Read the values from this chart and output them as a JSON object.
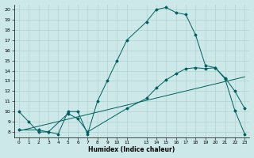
{
  "xlabel": "Humidex (Indice chaleur)",
  "bg_color": "#cce8e8",
  "grid_color": "#aacccc",
  "line_color": "#006060",
  "xlim": [
    -0.5,
    23.5
  ],
  "ylim": [
    7.5,
    20.5
  ],
  "xtick_positions": [
    0,
    1,
    2,
    3,
    4,
    5,
    6,
    7,
    8,
    9,
    10,
    11,
    13,
    14,
    15,
    16,
    17,
    18,
    19,
    20,
    21,
    22,
    23
  ],
  "xtick_labels": [
    "0",
    "1",
    "2",
    "3",
    "4",
    "5",
    "6",
    "7",
    "8",
    "9",
    "10",
    "11",
    "13",
    "14",
    "15",
    "16",
    "17",
    "18",
    "19",
    "20",
    "21",
    "22",
    "23"
  ],
  "yticks": [
    8,
    9,
    10,
    11,
    12,
    13,
    14,
    15,
    16,
    17,
    18,
    19,
    20
  ],
  "line1_x": [
    0,
    1,
    2,
    3,
    4,
    5,
    6,
    7,
    8,
    9,
    10,
    11,
    13,
    14,
    15,
    16,
    17,
    18,
    19,
    20,
    21,
    22,
    23
  ],
  "line1_y": [
    10,
    9,
    8,
    8,
    7.8,
    10,
    10,
    7.8,
    11,
    13,
    15,
    17,
    18.8,
    20,
    20.2,
    19.7,
    19.5,
    17.5,
    14.5,
    14.3,
    13.3,
    12,
    10.3
  ],
  "line2_x": [
    0,
    2,
    3,
    5,
    6,
    7,
    11,
    13,
    14,
    15,
    16,
    17,
    18,
    19,
    20,
    21,
    22,
    23
  ],
  "line2_y": [
    8.2,
    8.2,
    8.0,
    9.8,
    9.3,
    8.0,
    10.3,
    11.3,
    12.3,
    13.1,
    13.7,
    14.2,
    14.3,
    14.2,
    14.3,
    13.2,
    10.1,
    7.8
  ],
  "line3_x": [
    0,
    23
  ],
  "line3_y": [
    8.1,
    13.4
  ]
}
